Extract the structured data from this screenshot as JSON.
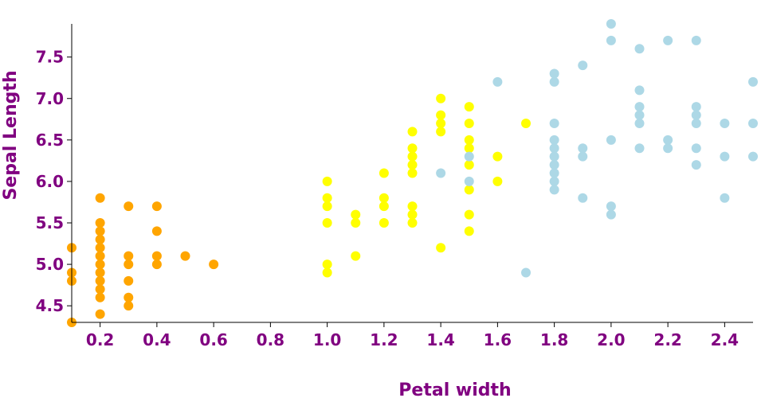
{
  "chart_data": {
    "type": "scatter",
    "title": "",
    "xlabel": "Petal width",
    "ylabel": "Sepal Length",
    "xlim": [
      0.1,
      2.5
    ],
    "ylim": [
      4.3,
      7.9
    ],
    "x_ticks": [
      "0.2",
      "0.4",
      "0.6",
      "0.8",
      "1.0",
      "1.2",
      "1.4",
      "1.6",
      "1.8",
      "2.0",
      "2.2",
      "2.4"
    ],
    "y_ticks": [
      "4.5",
      "5.0",
      "5.5",
      "6.0",
      "6.5",
      "7.0",
      "7.5"
    ],
    "grid": false,
    "legend": "none",
    "series": [
      {
        "color": "#ffa500",
        "points": [
          [
            0.1,
            5.2
          ],
          [
            0.1,
            4.9
          ],
          [
            0.1,
            4.8
          ],
          [
            0.1,
            4.3
          ],
          [
            0.2,
            5.8
          ],
          [
            0.2,
            5.5
          ],
          [
            0.2,
            5.4
          ],
          [
            0.2,
            5.3
          ],
          [
            0.2,
            5.2
          ],
          [
            0.2,
            5.1
          ],
          [
            0.2,
            5.0
          ],
          [
            0.2,
            4.9
          ],
          [
            0.2,
            4.8
          ],
          [
            0.2,
            4.7
          ],
          [
            0.2,
            4.6
          ],
          [
            0.2,
            4.4
          ],
          [
            0.3,
            5.7
          ],
          [
            0.3,
            5.1
          ],
          [
            0.3,
            5.0
          ],
          [
            0.3,
            4.8
          ],
          [
            0.3,
            4.6
          ],
          [
            0.3,
            4.5
          ],
          [
            0.4,
            5.7
          ],
          [
            0.4,
            5.4
          ],
          [
            0.4,
            5.1
          ],
          [
            0.4,
            5.0
          ],
          [
            0.5,
            5.1
          ],
          [
            0.6,
            5.0
          ]
        ]
      },
      {
        "color": "#ffff00",
        "points": [
          [
            1.0,
            6.0
          ],
          [
            1.0,
            5.8
          ],
          [
            1.0,
            5.7
          ],
          [
            1.0,
            5.5
          ],
          [
            1.0,
            5.0
          ],
          [
            1.0,
            4.9
          ],
          [
            1.1,
            5.6
          ],
          [
            1.1,
            5.5
          ],
          [
            1.1,
            5.1
          ],
          [
            1.2,
            6.1
          ],
          [
            1.2,
            5.8
          ],
          [
            1.2,
            5.7
          ],
          [
            1.2,
            5.5
          ],
          [
            1.3,
            6.6
          ],
          [
            1.3,
            6.4
          ],
          [
            1.3,
            6.3
          ],
          [
            1.3,
            6.2
          ],
          [
            1.3,
            6.1
          ],
          [
            1.3,
            5.7
          ],
          [
            1.3,
            5.6
          ],
          [
            1.3,
            5.5
          ],
          [
            1.4,
            7.0
          ],
          [
            1.4,
            6.8
          ],
          [
            1.4,
            6.7
          ],
          [
            1.4,
            6.6
          ],
          [
            1.4,
            5.2
          ],
          [
            1.5,
            6.9
          ],
          [
            1.5,
            6.7
          ],
          [
            1.5,
            6.5
          ],
          [
            1.5,
            6.4
          ],
          [
            1.5,
            6.2
          ],
          [
            1.5,
            5.9
          ],
          [
            1.5,
            5.6
          ],
          [
            1.5,
            5.4
          ],
          [
            1.6,
            6.3
          ],
          [
            1.6,
            6.0
          ],
          [
            1.7,
            6.7
          ]
        ]
      },
      {
        "color": "#add8e6",
        "points": [
          [
            1.4,
            6.1
          ],
          [
            1.5,
            6.3
          ],
          [
            1.5,
            6.0
          ],
          [
            1.6,
            7.2
          ],
          [
            1.7,
            4.9
          ],
          [
            1.8,
            7.3
          ],
          [
            1.8,
            7.2
          ],
          [
            1.8,
            6.7
          ],
          [
            1.8,
            6.5
          ],
          [
            1.8,
            6.4
          ],
          [
            1.8,
            6.3
          ],
          [
            1.8,
            6.2
          ],
          [
            1.8,
            6.1
          ],
          [
            1.8,
            6.0
          ],
          [
            1.8,
            5.9
          ],
          [
            1.9,
            7.4
          ],
          [
            1.9,
            6.4
          ],
          [
            1.9,
            6.3
          ],
          [
            1.9,
            5.8
          ],
          [
            2.0,
            7.9
          ],
          [
            2.0,
            7.7
          ],
          [
            2.0,
            6.5
          ],
          [
            2.0,
            5.7
          ],
          [
            2.0,
            5.6
          ],
          [
            2.1,
            7.6
          ],
          [
            2.1,
            7.1
          ],
          [
            2.1,
            6.9
          ],
          [
            2.1,
            6.8
          ],
          [
            2.1,
            6.7
          ],
          [
            2.1,
            6.4
          ],
          [
            2.2,
            7.7
          ],
          [
            2.2,
            6.5
          ],
          [
            2.2,
            6.4
          ],
          [
            2.3,
            7.7
          ],
          [
            2.3,
            6.9
          ],
          [
            2.3,
            6.8
          ],
          [
            2.3,
            6.7
          ],
          [
            2.3,
            6.4
          ],
          [
            2.3,
            6.2
          ],
          [
            2.4,
            6.7
          ],
          [
            2.4,
            6.3
          ],
          [
            2.4,
            5.8
          ],
          [
            2.5,
            7.2
          ],
          [
            2.5,
            6.7
          ],
          [
            2.5,
            6.3
          ]
        ]
      }
    ]
  }
}
